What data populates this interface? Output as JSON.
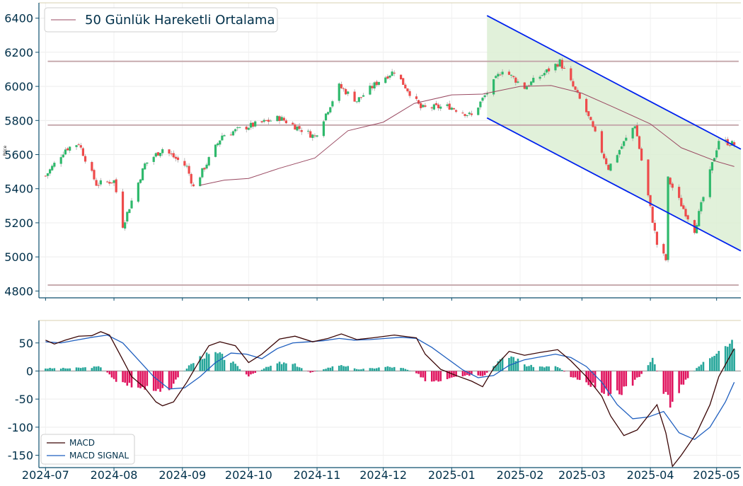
{
  "chart_data": [
    {
      "type": "candlestick",
      "ylabel": "Price",
      "ylim": [
        4760,
        6490
      ],
      "yticks": [
        4800,
        5000,
        5200,
        5400,
        5600,
        5800,
        6000,
        6200,
        6400
      ],
      "x_start": "2024-06-28",
      "x_end": "2025-05-12",
      "legend": {
        "text": "50 Günlük Hareketli Ortalama",
        "placement": "top-left"
      },
      "colors": {
        "up": "#2fb96c",
        "down": "#ee4b4b",
        "ma": "#9a4a62",
        "hline": "#c4a6aa",
        "channel": "#0022ee",
        "channel_fill": "#dcefd3",
        "axis": "#0d4f6e",
        "tick_text": "#00304a"
      },
      "horizontal_levels": [
        6147,
        5773,
        4835
      ],
      "channel": {
        "upper": [
          [
            "2025-01-17",
            6415
          ],
          [
            "2025-05-12",
            5632
          ]
        ],
        "lower": [
          [
            "2025-01-17",
            5815
          ],
          [
            "2025-05-12",
            5035
          ]
        ]
      },
      "close_series": [
        [
          "2024-07-01",
          5475
        ],
        [
          "2024-07-10",
          5633
        ],
        [
          "2024-07-16",
          5667
        ],
        [
          "2024-07-24",
          5427
        ],
        [
          "2024-08-01",
          5446
        ],
        [
          "2024-08-05",
          5186
        ],
        [
          "2024-08-15",
          5543
        ],
        [
          "2024-08-23",
          5634
        ],
        [
          "2024-09-03",
          5528
        ],
        [
          "2024-09-06",
          5408
        ],
        [
          "2024-09-19",
          5713
        ],
        [
          "2024-09-30",
          5762
        ],
        [
          "2024-10-15",
          5815
        ],
        [
          "2024-10-31",
          5705
        ],
        [
          "2024-11-11",
          6001
        ],
        [
          "2024-11-19",
          5916
        ],
        [
          "2024-11-29",
          6032
        ],
        [
          "2024-12-06",
          6090
        ],
        [
          "2024-12-18",
          5872
        ],
        [
          "2024-12-31",
          5882
        ],
        [
          "2025-01-10",
          5827
        ],
        [
          "2025-01-24",
          6101
        ],
        [
          "2025-02-03",
          5994
        ],
        [
          "2025-02-19",
          6144
        ],
        [
          "2025-03-03",
          5849
        ],
        [
          "2025-03-13",
          5521
        ],
        [
          "2025-03-25",
          5777
        ],
        [
          "2025-04-04",
          5074
        ],
        [
          "2025-04-08",
          4982
        ],
        [
          "2025-04-09",
          5456
        ],
        [
          "2025-04-21",
          5158
        ],
        [
          "2025-05-02",
          5686
        ],
        [
          "2025-05-09",
          5660
        ]
      ],
      "ma50_series": [
        [
          "2024-09-09",
          5420
        ],
        [
          "2024-09-20",
          5450
        ],
        [
          "2024-10-01",
          5460
        ],
        [
          "2024-10-15",
          5520
        ],
        [
          "2024-10-31",
          5580
        ],
        [
          "2024-11-15",
          5740
        ],
        [
          "2024-12-01",
          5790
        ],
        [
          "2024-12-15",
          5900
        ],
        [
          "2025-01-01",
          5950
        ],
        [
          "2025-01-15",
          5955
        ],
        [
          "2025-02-01",
          6000
        ],
        [
          "2025-02-15",
          6005
        ],
        [
          "2025-03-01",
          5960
        ],
        [
          "2025-03-15",
          5880
        ],
        [
          "2025-04-01",
          5780
        ],
        [
          "2025-04-15",
          5640
        ],
        [
          "2025-05-01",
          5560
        ],
        [
          "2025-05-09",
          5530
        ]
      ]
    },
    {
      "type": "macd",
      "ylim": [
        -172,
        90
      ],
      "yticks": [
        50,
        0,
        -50,
        -100,
        -150
      ],
      "legend": {
        "entries": [
          "MACD",
          "MACD SIGNAL"
        ],
        "placement": "bottom-left"
      },
      "colors": {
        "macd": "#3a0505",
        "signal": "#1f5fbf",
        "hist_pos": "#26a69a",
        "hist_neg": "#e0155f"
      },
      "macd": [
        [
          "2024-07-01",
          55
        ],
        [
          "2024-07-05",
          48
        ],
        [
          "2024-07-10",
          55
        ],
        [
          "2024-07-16",
          62
        ],
        [
          "2024-07-22",
          63
        ],
        [
          "2024-07-26",
          70
        ],
        [
          "2024-07-30",
          64
        ],
        [
          "2024-08-05",
          20
        ],
        [
          "2024-08-09",
          -10
        ],
        [
          "2024-08-15",
          -30
        ],
        [
          "2024-08-20",
          -55
        ],
        [
          "2024-08-23",
          -62
        ],
        [
          "2024-08-28",
          -55
        ],
        [
          "2024-09-03",
          -20
        ],
        [
          "2024-09-09",
          20
        ],
        [
          "2024-09-13",
          45
        ],
        [
          "2024-09-18",
          52
        ],
        [
          "2024-09-25",
          45
        ],
        [
          "2024-10-01",
          15
        ],
        [
          "2024-10-07",
          30
        ],
        [
          "2024-10-15",
          57
        ],
        [
          "2024-10-22",
          62
        ],
        [
          "2024-10-30",
          52
        ],
        [
          "2024-11-06",
          58
        ],
        [
          "2024-11-12",
          66
        ],
        [
          "2024-11-19",
          56
        ],
        [
          "2024-11-26",
          59
        ],
        [
          "2024-12-06",
          64
        ],
        [
          "2024-12-16",
          59
        ],
        [
          "2024-12-20",
          30
        ],
        [
          "2024-12-27",
          3
        ],
        [
          "2025-01-03",
          -8
        ],
        [
          "2025-01-10",
          -18
        ],
        [
          "2025-01-15",
          -28
        ],
        [
          "2025-01-20",
          5
        ],
        [
          "2025-01-27",
          35
        ],
        [
          "2025-02-03",
          28
        ],
        [
          "2025-02-10",
          33
        ],
        [
          "2025-02-18",
          38
        ],
        [
          "2025-02-24",
          18
        ],
        [
          "2025-03-03",
          -10
        ],
        [
          "2025-03-10",
          -45
        ],
        [
          "2025-03-14",
          -80
        ],
        [
          "2025-03-20",
          -115
        ],
        [
          "2025-03-26",
          -105
        ],
        [
          "2025-04-01",
          -75
        ],
        [
          "2025-04-04",
          -60
        ],
        [
          "2025-04-08",
          -110
        ],
        [
          "2025-04-11",
          -170
        ],
        [
          "2025-04-15",
          -150
        ],
        [
          "2025-04-22",
          -110
        ],
        [
          "2025-04-28",
          -60
        ],
        [
          "2025-05-02",
          -10
        ],
        [
          "2025-05-09",
          40
        ]
      ],
      "signal": [
        [
          "2024-07-01",
          52
        ],
        [
          "2024-07-08",
          50
        ],
        [
          "2024-07-15",
          55
        ],
        [
          "2024-07-22",
          60
        ],
        [
          "2024-07-29",
          64
        ],
        [
          "2024-08-05",
          50
        ],
        [
          "2024-08-12",
          20
        ],
        [
          "2024-08-19",
          -10
        ],
        [
          "2024-08-26",
          -32
        ],
        [
          "2024-09-02",
          -30
        ],
        [
          "2024-09-09",
          -10
        ],
        [
          "2024-09-16",
          15
        ],
        [
          "2024-09-23",
          32
        ],
        [
          "2024-09-30",
          30
        ],
        [
          "2024-10-07",
          22
        ],
        [
          "2024-10-14",
          40
        ],
        [
          "2024-10-21",
          50
        ],
        [
          "2024-10-28",
          52
        ],
        [
          "2024-11-04",
          54
        ],
        [
          "2024-11-11",
          58
        ],
        [
          "2024-11-18",
          55
        ],
        [
          "2024-11-25",
          56
        ],
        [
          "2024-12-02",
          58
        ],
        [
          "2024-12-09",
          60
        ],
        [
          "2024-12-16",
          58
        ],
        [
          "2024-12-23",
          42
        ],
        [
          "2024-12-30",
          22
        ],
        [
          "2025-01-06",
          2
        ],
        [
          "2025-01-13",
          -12
        ],
        [
          "2025-01-20",
          -8
        ],
        [
          "2025-01-27",
          10
        ],
        [
          "2025-02-03",
          20
        ],
        [
          "2025-02-10",
          25
        ],
        [
          "2025-02-17",
          30
        ],
        [
          "2025-02-24",
          24
        ],
        [
          "2025-03-03",
          8
        ],
        [
          "2025-03-10",
          -20
        ],
        [
          "2025-03-17",
          -60
        ],
        [
          "2025-03-24",
          -85
        ],
        [
          "2025-03-31",
          -82
        ],
        [
          "2025-04-07",
          -72
        ],
        [
          "2025-04-14",
          -110
        ],
        [
          "2025-04-21",
          -122
        ],
        [
          "2025-04-28",
          -100
        ],
        [
          "2025-05-05",
          -55
        ],
        [
          "2025-05-09",
          -20
        ]
      ],
      "histogram": [
        [
          "2024-07-01",
          5
        ],
        [
          "2024-07-12",
          5
        ],
        [
          "2024-07-26",
          8
        ],
        [
          "2024-08-02",
          -18
        ],
        [
          "2024-08-09",
          -28
        ],
        [
          "2024-08-16",
          -35
        ],
        [
          "2024-08-21",
          -42
        ],
        [
          "2024-08-27",
          -28
        ],
        [
          "2024-09-04",
          10
        ],
        [
          "2024-09-10",
          28
        ],
        [
          "2024-09-17",
          32
        ],
        [
          "2024-09-24",
          15
        ],
        [
          "2024-10-01",
          -10
        ],
        [
          "2024-10-08",
          5
        ],
        [
          "2024-10-15",
          15
        ],
        [
          "2024-10-22",
          12
        ],
        [
          "2024-10-29",
          -3
        ],
        [
          "2024-11-05",
          5
        ],
        [
          "2024-11-12",
          12
        ],
        [
          "2024-11-19",
          3
        ],
        [
          "2024-11-26",
          5
        ],
        [
          "2024-12-03",
          8
        ],
        [
          "2024-12-10",
          5
        ],
        [
          "2024-12-17",
          -5
        ],
        [
          "2024-12-20",
          -20
        ],
        [
          "2024-12-27",
          -22
        ],
        [
          "2025-01-03",
          -12
        ],
        [
          "2025-01-10",
          -8
        ],
        [
          "2025-01-15",
          -12
        ],
        [
          "2025-01-22",
          18
        ],
        [
          "2025-01-28",
          28
        ],
        [
          "2025-02-04",
          10
        ],
        [
          "2025-02-11",
          8
        ],
        [
          "2025-02-18",
          8
        ],
        [
          "2025-02-24",
          -10
        ],
        [
          "2025-03-03",
          -20
        ],
        [
          "2025-03-07",
          -30
        ],
        [
          "2025-03-12",
          -38
        ],
        [
          "2025-03-18",
          -42
        ],
        [
          "2025-03-24",
          -25
        ],
        [
          "2025-03-31",
          10
        ],
        [
          "2025-04-02",
          25
        ],
        [
          "2025-04-07",
          -40
        ],
        [
          "2025-04-10",
          -62
        ],
        [
          "2025-04-14",
          -35
        ],
        [
          "2025-04-22",
          5
        ],
        [
          "2025-04-29",
          30
        ],
        [
          "2025-05-02",
          45
        ],
        [
          "2025-05-06",
          52
        ],
        [
          "2025-05-09",
          48
        ]
      ]
    }
  ],
  "x_ticks": [
    "2024-07",
    "2024-08",
    "2024-09",
    "2024-10",
    "2024-11",
    "2024-12",
    "2025-01",
    "2025-02",
    "2025-03",
    "2025-04",
    "2025-05"
  ]
}
